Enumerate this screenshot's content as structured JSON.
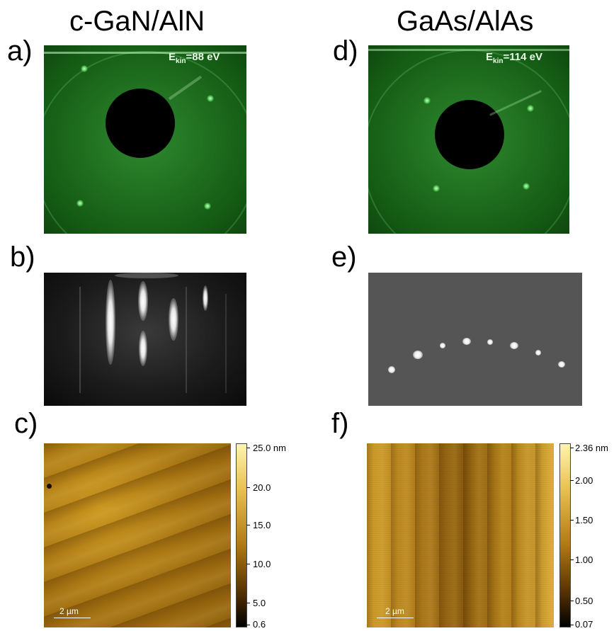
{
  "columns": {
    "left_title": "c-GaN/AlN",
    "right_title": "GaAs/AlAs"
  },
  "panels": {
    "a": {
      "letter": "a)",
      "energy_prefix": "E",
      "energy_sub": "kin",
      "energy_value": "=88 eV"
    },
    "b": {
      "letter": "b)"
    },
    "c": {
      "letter": "c)",
      "scale_label": "2 µm",
      "colorbar_ticks": [
        "25.0 nm",
        "20.0",
        "15.0",
        "10.0",
        "5.0",
        "0.6"
      ]
    },
    "d": {
      "letter": "d)",
      "energy_prefix": "E",
      "energy_sub": "kin",
      "energy_value": "=114 eV"
    },
    "e": {
      "letter": "e)"
    },
    "f": {
      "letter": "f)",
      "scale_label": "2 µm",
      "colorbar_ticks": [
        "2.36 nm",
        "2.00",
        "1.50",
        "1.00",
        "0.50",
        "0.07"
      ]
    }
  },
  "colors": {
    "leed_green": "#1f6e1f",
    "afm_gold": "#b07a14"
  }
}
